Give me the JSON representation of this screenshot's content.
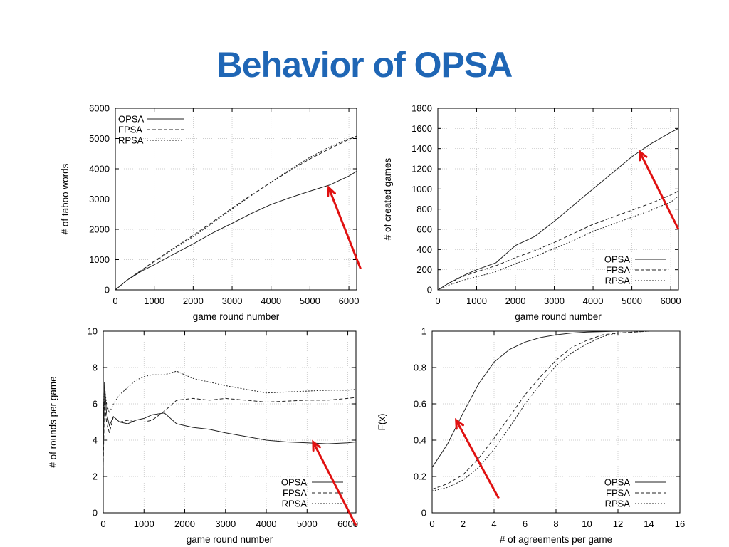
{
  "slide": {
    "title": "Behavior of OPSA",
    "title_color": "#1f66b5"
  },
  "arrow_color": "#e01010",
  "chart_data": [
    {
      "type": "line",
      "xlabel": "game round number",
      "ylabel": "# of taboo words",
      "xlim": [
        0,
        6200
      ],
      "ylim": [
        0,
        6000
      ],
      "xticks": [
        0,
        1000,
        2000,
        3000,
        4000,
        5000,
        6000
      ],
      "yticks": [
        0,
        1000,
        2000,
        3000,
        4000,
        5000,
        6000
      ],
      "legend": "top-left",
      "grid": true,
      "series": [
        {
          "name": "OPSA",
          "style": "solid",
          "x": [
            0,
            300,
            700,
            1000,
            1500,
            2000,
            2500,
            3000,
            3500,
            4000,
            4500,
            5000,
            5500,
            6000,
            6200
          ],
          "y": [
            0,
            320,
            640,
            830,
            1180,
            1520,
            1880,
            2200,
            2530,
            2820,
            3050,
            3260,
            3460,
            3760,
            3920
          ]
        },
        {
          "name": "FPSA",
          "style": "dashed",
          "x": [
            0,
            300,
            700,
            1000,
            1500,
            2000,
            2500,
            3000,
            3500,
            4000,
            4500,
            5000,
            5500,
            6000,
            6200
          ],
          "y": [
            0,
            320,
            680,
            950,
            1380,
            1800,
            2250,
            2700,
            3140,
            3550,
            3950,
            4330,
            4660,
            4970,
            5080
          ]
        },
        {
          "name": "RPSA",
          "style": "dotted",
          "x": [
            0,
            300,
            700,
            1000,
            1500,
            2000,
            2500,
            3000,
            3500,
            4000,
            4500,
            5000,
            5500,
            6000,
            6200
          ],
          "y": [
            0,
            320,
            670,
            930,
            1350,
            1760,
            2210,
            2670,
            3120,
            3560,
            3980,
            4380,
            4720,
            4990,
            5050
          ]
        }
      ],
      "annotation_arrow": {
        "from": [
          6300,
          700
        ],
        "to": [
          5480,
          3380
        ]
      }
    },
    {
      "type": "line",
      "xlabel": "game round number",
      "ylabel": "# of created games",
      "xlim": [
        0,
        6200
      ],
      "ylim": [
        0,
        1800
      ],
      "xticks": [
        0,
        1000,
        2000,
        3000,
        4000,
        5000,
        6000
      ],
      "yticks": [
        0,
        200,
        400,
        600,
        800,
        1000,
        1200,
        1400,
        1600,
        1800
      ],
      "legend": "bottom-right",
      "grid": true,
      "series": [
        {
          "name": "OPSA",
          "style": "solid",
          "x": [
            0,
            300,
            700,
            1000,
            1500,
            2000,
            2500,
            3000,
            3500,
            4000,
            4500,
            5000,
            5500,
            6000,
            6200
          ],
          "y": [
            0,
            70,
            150,
            200,
            270,
            440,
            530,
            680,
            840,
            1000,
            1160,
            1320,
            1450,
            1560,
            1600
          ]
        },
        {
          "name": "FPSA",
          "style": "dashed",
          "x": [
            0,
            300,
            700,
            1000,
            1500,
            2000,
            2500,
            3000,
            3500,
            4000,
            4500,
            5000,
            5500,
            6000,
            6200
          ],
          "y": [
            0,
            70,
            140,
            180,
            240,
            320,
            390,
            470,
            560,
            650,
            720,
            790,
            860,
            940,
            980
          ]
        },
        {
          "name": "RPSA",
          "style": "dotted",
          "x": [
            0,
            300,
            700,
            1000,
            1500,
            2000,
            2500,
            3000,
            3500,
            4000,
            4500,
            5000,
            5500,
            6000,
            6200
          ],
          "y": [
            0,
            50,
            100,
            130,
            180,
            260,
            330,
            410,
            490,
            580,
            650,
            720,
            790,
            870,
            930
          ]
        }
      ],
      "annotation_arrow": {
        "from": [
          6200,
          600
        ],
        "to": [
          5200,
          1370
        ]
      }
    },
    {
      "type": "line",
      "xlabel": "game round number",
      "ylabel": "# of rounds per game",
      "xlim": [
        0,
        6200
      ],
      "ylim": [
        0,
        10
      ],
      "xticks": [
        0,
        1000,
        2000,
        3000,
        4000,
        5000,
        6000
      ],
      "yticks": [
        0,
        2,
        4,
        6,
        8,
        10
      ],
      "legend": "bottom-right",
      "grid": true,
      "series": [
        {
          "name": "OPSA",
          "style": "solid",
          "x": [
            0,
            30,
            80,
            150,
            250,
            400,
            600,
            800,
            1000,
            1200,
            1500,
            1800,
            2200,
            2600,
            3000,
            3500,
            4000,
            4500,
            5000,
            5500,
            6000,
            6200
          ],
          "y": [
            3.0,
            7.2,
            5.5,
            4.8,
            5.3,
            5.0,
            4.9,
            5.1,
            5.2,
            5.4,
            5.5,
            4.9,
            4.7,
            4.6,
            4.4,
            4.2,
            4.0,
            3.9,
            3.85,
            3.8,
            3.85,
            3.9
          ]
        },
        {
          "name": "FPSA",
          "style": "dashed",
          "x": [
            0,
            30,
            80,
            150,
            250,
            400,
            600,
            800,
            1000,
            1200,
            1500,
            1800,
            2200,
            2600,
            3000,
            3500,
            4000,
            4500,
            5000,
            5500,
            6000,
            6200
          ],
          "y": [
            2.5,
            6.2,
            5.0,
            4.4,
            5.3,
            5.0,
            5.1,
            5.0,
            5.0,
            5.1,
            5.6,
            6.2,
            6.3,
            6.2,
            6.3,
            6.2,
            6.1,
            6.15,
            6.2,
            6.2,
            6.3,
            6.35
          ]
        },
        {
          "name": "RPSA",
          "style": "dotted",
          "x": [
            0,
            30,
            80,
            150,
            250,
            400,
            600,
            800,
            1000,
            1200,
            1500,
            1800,
            2200,
            2600,
            3000,
            3500,
            4000,
            4500,
            5000,
            5500,
            6000,
            6200
          ],
          "y": [
            4.0,
            7.0,
            6.0,
            5.5,
            6.0,
            6.5,
            6.9,
            7.3,
            7.5,
            7.6,
            7.6,
            7.8,
            7.4,
            7.2,
            7.0,
            6.8,
            6.6,
            6.65,
            6.7,
            6.75,
            6.75,
            6.8
          ]
        }
      ],
      "annotation_arrow": {
        "from": [
          6200,
          -0.7
        ],
        "to": [
          5150,
          3.9
        ]
      }
    },
    {
      "type": "line",
      "xlabel": "# of agreements per game",
      "ylabel": "F(x)",
      "xlim": [
        0,
        16
      ],
      "ylim": [
        0,
        1
      ],
      "xticks": [
        0,
        2,
        4,
        6,
        8,
        10,
        12,
        14,
        16
      ],
      "yticks": [
        0,
        0.2,
        0.4,
        0.6,
        0.8,
        1
      ],
      "legend": "bottom-right",
      "grid": true,
      "series": [
        {
          "name": "OPSA",
          "style": "solid",
          "x": [
            0,
            1,
            2,
            3,
            4,
            5,
            6,
            7,
            8,
            9,
            10,
            12,
            14,
            16
          ],
          "y": [
            0.25,
            0.38,
            0.55,
            0.71,
            0.83,
            0.9,
            0.94,
            0.965,
            0.98,
            0.99,
            0.995,
            1,
            1,
            1
          ]
        },
        {
          "name": "FPSA",
          "style": "dashed",
          "x": [
            0,
            1,
            2,
            3,
            4,
            5,
            6,
            7,
            8,
            9,
            10,
            11,
            12,
            14,
            16
          ],
          "y": [
            0.13,
            0.16,
            0.21,
            0.3,
            0.41,
            0.53,
            0.65,
            0.75,
            0.84,
            0.91,
            0.95,
            0.98,
            0.99,
            1,
            1
          ]
        },
        {
          "name": "RPSA",
          "style": "dotted",
          "x": [
            0,
            1,
            2,
            3,
            4,
            5,
            6,
            7,
            8,
            9,
            10,
            11,
            12,
            14,
            16
          ],
          "y": [
            0.12,
            0.14,
            0.18,
            0.25,
            0.35,
            0.47,
            0.6,
            0.71,
            0.81,
            0.88,
            0.93,
            0.97,
            0.99,
            1,
            1
          ]
        }
      ],
      "annotation_arrow": {
        "from": [
          4.3,
          0.08
        ],
        "to": [
          1.55,
          0.51
        ]
      }
    }
  ]
}
